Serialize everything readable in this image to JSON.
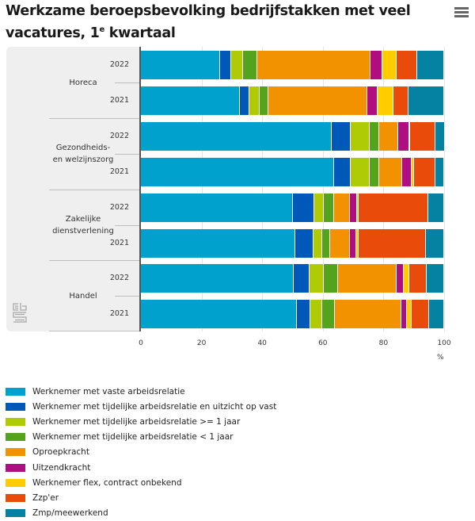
{
  "header": {
    "title_line1": "Werkzame beroepsbevolking bedrijfstakken met veel",
    "title_line2_pre": "vacatures, 1",
    "title_line2_sup": "e",
    "title_line2_post": " kwartaal",
    "menu_icon": "hamburger-menu-icon"
  },
  "branding": {
    "logo_icon": "cbs-logo-icon"
  },
  "chart_data": {
    "type": "bar",
    "orientation": "horizontal",
    "stacked": true,
    "title": "Werkzame beroepsbevolking bedrijfstakken met veel vacatures, 1e kwartaal",
    "xlabel": "%",
    "ylabel": "",
    "xlim": [
      0,
      100
    ],
    "x_ticks": [
      "0",
      "20",
      "40",
      "60",
      "80",
      "100"
    ],
    "grid": true,
    "legend_position": "bottom",
    "groups": [
      {
        "name": "Horeca",
        "categories": [
          "2022",
          "2021"
        ]
      },
      {
        "name": "Gezondheids- en welzijnszorg",
        "name_lines": [
          "Gezondheids-",
          "en welzijnszorg"
        ],
        "categories": [
          "2022",
          "2021"
        ]
      },
      {
        "name": "Zakelijke dienstverlening",
        "name_lines": [
          "Zakelijke",
          "dienstverlening"
        ],
        "categories": [
          "2022",
          "2021"
        ]
      },
      {
        "name": "Handel",
        "categories": [
          "2022",
          "2021"
        ]
      }
    ],
    "categories": [
      "Horeca 2022",
      "Horeca 2021",
      "Gezondheids- en welzijnszorg 2022",
      "Gezondheids- en welzijnszorg 2021",
      "Zakelijke dienstverlening 2022",
      "Zakelijke dienstverlening 2021",
      "Handel 2022",
      "Handel 2021"
    ],
    "series": [
      {
        "name": "Werknemer met vaste arbeidsrelatie",
        "color": "#00a1cd",
        "values": [
          26.0,
          32.6,
          62.8,
          63.8,
          50.1,
          50.8,
          50.3,
          51.4
        ]
      },
      {
        "name": "Werknemer met tijdelijke arbeidsrelatie en uitzicht op vast",
        "color": "#0058b8",
        "values": [
          3.8,
          3.2,
          6.5,
          5.5,
          7.2,
          6.0,
          5.2,
          4.4
        ]
      },
      {
        "name": "Werknemer met tijdelijke arbeidsrelatie >= 1 jaar",
        "color": "#afcb05",
        "values": [
          3.8,
          3.3,
          6.2,
          6.2,
          3.1,
          3.0,
          4.9,
          3.9
        ]
      },
      {
        "name": "Werknemer met tijdelijke arbeidsrelatie < 1 jaar",
        "color": "#53a31d",
        "values": [
          4.8,
          2.9,
          3.2,
          3.0,
          3.3,
          2.7,
          4.5,
          4.3
        ]
      },
      {
        "name": "Oproepkracht",
        "color": "#f39200",
        "values": [
          37.4,
          32.8,
          6.2,
          7.7,
          5.1,
          6.3,
          19.4,
          21.8
        ]
      },
      {
        "name": "Uitzendkracht",
        "color": "#af0e80",
        "values": [
          3.9,
          3.2,
          3.7,
          3.1,
          2.4,
          2.2,
          2.4,
          1.9
        ]
      },
      {
        "name": "Werknemer flex, contract onbekend",
        "color": "#ffcc00",
        "values": [
          4.6,
          5.2,
          0.3,
          0.7,
          0.7,
          0.7,
          1.7,
          1.6
        ]
      },
      {
        "name": "Zzp'er",
        "color": "#e94c0a",
        "values": [
          6.7,
          5.1,
          8.3,
          7.2,
          23.0,
          22.4,
          5.9,
          5.7
        ]
      },
      {
        "name": "Zmp/meewerkend",
        "color": "#0581a2",
        "values": [
          9.0,
          11.7,
          3.1,
          2.8,
          5.1,
          5.9,
          5.7,
          5.0
        ]
      }
    ]
  }
}
